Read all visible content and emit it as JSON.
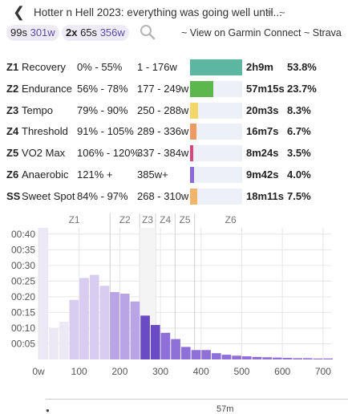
{
  "header": {
    "back_icon": "chevron-left-icon",
    "title": "Hotter n Hell 2023: everything was going well until...",
    "edit_icon": "pencil-icon",
    "tilde": "~"
  },
  "stats": {
    "pill1": {
      "key": "99s",
      "value": "301w"
    },
    "pill2": {
      "key": "2x",
      "mid": "65s",
      "value": "356w"
    },
    "search_icon": "search-icon",
    "links_text": "~ View on Garmin Connect ~ Strava"
  },
  "zones": [
    {
      "id": "Z1",
      "name": "Recovery",
      "pct": "0% - 55%",
      "watts": "1 - 176w",
      "time": "2h9m",
      "share": "53.8%",
      "fill": 1.0,
      "color": "#5bb7a0"
    },
    {
      "id": "Z2",
      "name": "Endurance",
      "pct": "56% - 78%",
      "watts": "177 - 249w",
      "time": "57m15s",
      "share": "23.7%",
      "fill": 0.44,
      "color": "#5cb84d"
    },
    {
      "id": "Z3",
      "name": "Tempo",
      "pct": "79% - 90%",
      "watts": "250 - 288w",
      "time": "20m3s",
      "share": "8.3%",
      "fill": 0.155,
      "color": "#f3d668"
    },
    {
      "id": "Z4",
      "name": "Threshold",
      "pct": "91% - 105%",
      "watts": "289 - 336w",
      "time": "16m7s",
      "share": "6.7%",
      "fill": 0.125,
      "color": "#ef9a63"
    },
    {
      "id": "Z5",
      "name": "VO2 Max",
      "pct": "106% - 120%",
      "watts": "337 - 384w",
      "time": "8m24s",
      "share": "3.5%",
      "fill": 0.065,
      "color": "#d9467a"
    },
    {
      "id": "Z6",
      "name": "Anaerobic",
      "pct": "121% +",
      "watts": "385w+",
      "time": "9m42s",
      "share": "4.0%",
      "fill": 0.075,
      "color": "#8b6bd8"
    },
    {
      "id": "SS",
      "name": "Sweet Spot",
      "pct": "84% - 97%",
      "watts": "268 - 310w",
      "time": "18m11s",
      "share": "7.5%",
      "fill": 0.14,
      "color": "#f0b56a"
    }
  ],
  "chart_data": {
    "type": "bar",
    "zone_labels": [
      {
        "label": "Z1",
        "start": 0,
        "end": 176
      },
      {
        "label": "Z2",
        "start": 176,
        "end": 249
      },
      {
        "label": "Z3",
        "start": 249,
        "end": 288
      },
      {
        "label": "Z4",
        "start": 288,
        "end": 336
      },
      {
        "label": "Z5",
        "start": 336,
        "end": 384
      },
      {
        "label": "Z6",
        "start": 384,
        "end": 720
      }
    ],
    "x_ticks": [
      "0w",
      "100",
      "200",
      "300",
      "400",
      "500",
      "600",
      "700"
    ],
    "x_tick_values": [
      0,
      100,
      200,
      300,
      400,
      500,
      600,
      700
    ],
    "y_ticks": [
      "00:05",
      "00:10",
      "00:15",
      "00:20",
      "00:25",
      "00:30",
      "00:35",
      "00:40"
    ],
    "y_tick_values": [
      5,
      10,
      15,
      20,
      25,
      30,
      35,
      40
    ],
    "xlim": [
      0,
      720
    ],
    "ylim": [
      0,
      42
    ],
    "bin_width": 25,
    "bins": [
      {
        "x": 0,
        "minutes": 42,
        "zone": "Z1"
      },
      {
        "x": 25,
        "minutes": 10,
        "zone": "Z1"
      },
      {
        "x": 50,
        "minutes": 12,
        "zone": "Z1"
      },
      {
        "x": 75,
        "minutes": 19,
        "zone": "Z1"
      },
      {
        "x": 100,
        "minutes": 26,
        "zone": "Z1"
      },
      {
        "x": 125,
        "minutes": 27,
        "zone": "Z1"
      },
      {
        "x": 150,
        "minutes": 23.5,
        "zone": "Z1"
      },
      {
        "x": 175,
        "minutes": 21.5,
        "zone": "Z2"
      },
      {
        "x": 200,
        "minutes": 21,
        "zone": "Z2"
      },
      {
        "x": 225,
        "minutes": 18.5,
        "zone": "Z2"
      },
      {
        "x": 250,
        "minutes": 14,
        "zone": "Z3"
      },
      {
        "x": 275,
        "minutes": 11,
        "zone": "Z3"
      },
      {
        "x": 300,
        "minutes": 8.5,
        "zone": "Z4"
      },
      {
        "x": 325,
        "minutes": 6.5,
        "zone": "Z4"
      },
      {
        "x": 350,
        "minutes": 4,
        "zone": "Z5"
      },
      {
        "x": 375,
        "minutes": 3,
        "zone": "Z5"
      },
      {
        "x": 400,
        "minutes": 3,
        "zone": "Z6"
      },
      {
        "x": 425,
        "minutes": 2,
        "zone": "Z6"
      },
      {
        "x": 450,
        "minutes": 1.5,
        "zone": "Z6"
      },
      {
        "x": 475,
        "minutes": 1.2,
        "zone": "Z6"
      },
      {
        "x": 500,
        "minutes": 1,
        "zone": "Z6"
      },
      {
        "x": 525,
        "minutes": 0.8,
        "zone": "Z6"
      },
      {
        "x": 550,
        "minutes": 0.7,
        "zone": "Z6"
      },
      {
        "x": 575,
        "minutes": 0.6,
        "zone": "Z6"
      },
      {
        "x": 600,
        "minutes": 0.5,
        "zone": "Z6"
      },
      {
        "x": 625,
        "minutes": 0.4,
        "zone": "Z6"
      },
      {
        "x": 650,
        "minutes": 0.4,
        "zone": "Z6"
      },
      {
        "x": 675,
        "minutes": 0.3,
        "zone": "Z6"
      },
      {
        "x": 700,
        "minutes": 0.3,
        "zone": "Z6"
      }
    ],
    "colors": {
      "first_bin": "#ece8f6",
      "light": "#d8cdf0",
      "mid": "#b9a4e6",
      "strong": "#8f6fd8",
      "deep": "#6a4bc4",
      "grid": "#e6e6e6",
      "zone_line": "#d0d0d0"
    },
    "grid": true
  },
  "bottom": {
    "label": "57m"
  }
}
